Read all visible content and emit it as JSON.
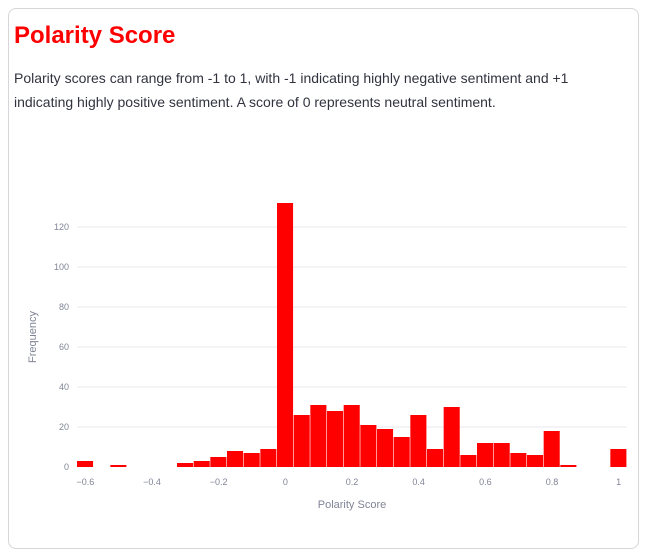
{
  "header": {
    "title": "Polarity Score",
    "description": "Polarity scores can range from -1 to 1, with -1 indicating highly negative sentiment and +1 indicating highly positive sentiment. A score of 0 represents neutral sentiment."
  },
  "colors": {
    "accent": "#ff0000",
    "bar": "#ff0000",
    "grid": "#eaeaec",
    "axis_text": "#808495"
  },
  "chart_data": {
    "type": "bar",
    "xlabel": "Polarity Score",
    "ylabel": "Frequency",
    "xlim": [
      -0.625,
      1.025
    ],
    "ylim": [
      0,
      132
    ],
    "bin_width": 0.05,
    "x_ticks": [
      -0.6,
      -0.4,
      -0.2,
      0,
      0.2,
      0.4,
      0.6,
      0.8,
      1
    ],
    "x_tick_labels": [
      "−0.6",
      "−0.4",
      "−0.2",
      "0",
      "0.2",
      "0.4",
      "0.6",
      "0.8",
      "1"
    ],
    "y_ticks": [
      0,
      20,
      40,
      60,
      80,
      100,
      120
    ],
    "grid": "y",
    "bins": [
      {
        "start": -0.625,
        "count": 3
      },
      {
        "start": -0.575,
        "count": 0
      },
      {
        "start": -0.525,
        "count": 1
      },
      {
        "start": -0.475,
        "count": 0
      },
      {
        "start": -0.425,
        "count": 0
      },
      {
        "start": -0.375,
        "count": 0
      },
      {
        "start": -0.325,
        "count": 2
      },
      {
        "start": -0.275,
        "count": 3
      },
      {
        "start": -0.225,
        "count": 5
      },
      {
        "start": -0.175,
        "count": 8
      },
      {
        "start": -0.125,
        "count": 7
      },
      {
        "start": -0.075,
        "count": 9
      },
      {
        "start": -0.025,
        "count": 132
      },
      {
        "start": 0.025,
        "count": 26
      },
      {
        "start": 0.075,
        "count": 31
      },
      {
        "start": 0.125,
        "count": 28
      },
      {
        "start": 0.175,
        "count": 31
      },
      {
        "start": 0.225,
        "count": 21
      },
      {
        "start": 0.275,
        "count": 19
      },
      {
        "start": 0.325,
        "count": 15
      },
      {
        "start": 0.375,
        "count": 26
      },
      {
        "start": 0.425,
        "count": 9
      },
      {
        "start": 0.475,
        "count": 30
      },
      {
        "start": 0.525,
        "count": 6
      },
      {
        "start": 0.575,
        "count": 12
      },
      {
        "start": 0.625,
        "count": 12
      },
      {
        "start": 0.675,
        "count": 7
      },
      {
        "start": 0.725,
        "count": 6
      },
      {
        "start": 0.775,
        "count": 18
      },
      {
        "start": 0.825,
        "count": 1
      },
      {
        "start": 0.875,
        "count": 0
      },
      {
        "start": 0.925,
        "count": 0
      },
      {
        "start": 0.975,
        "count": 9
      }
    ]
  }
}
